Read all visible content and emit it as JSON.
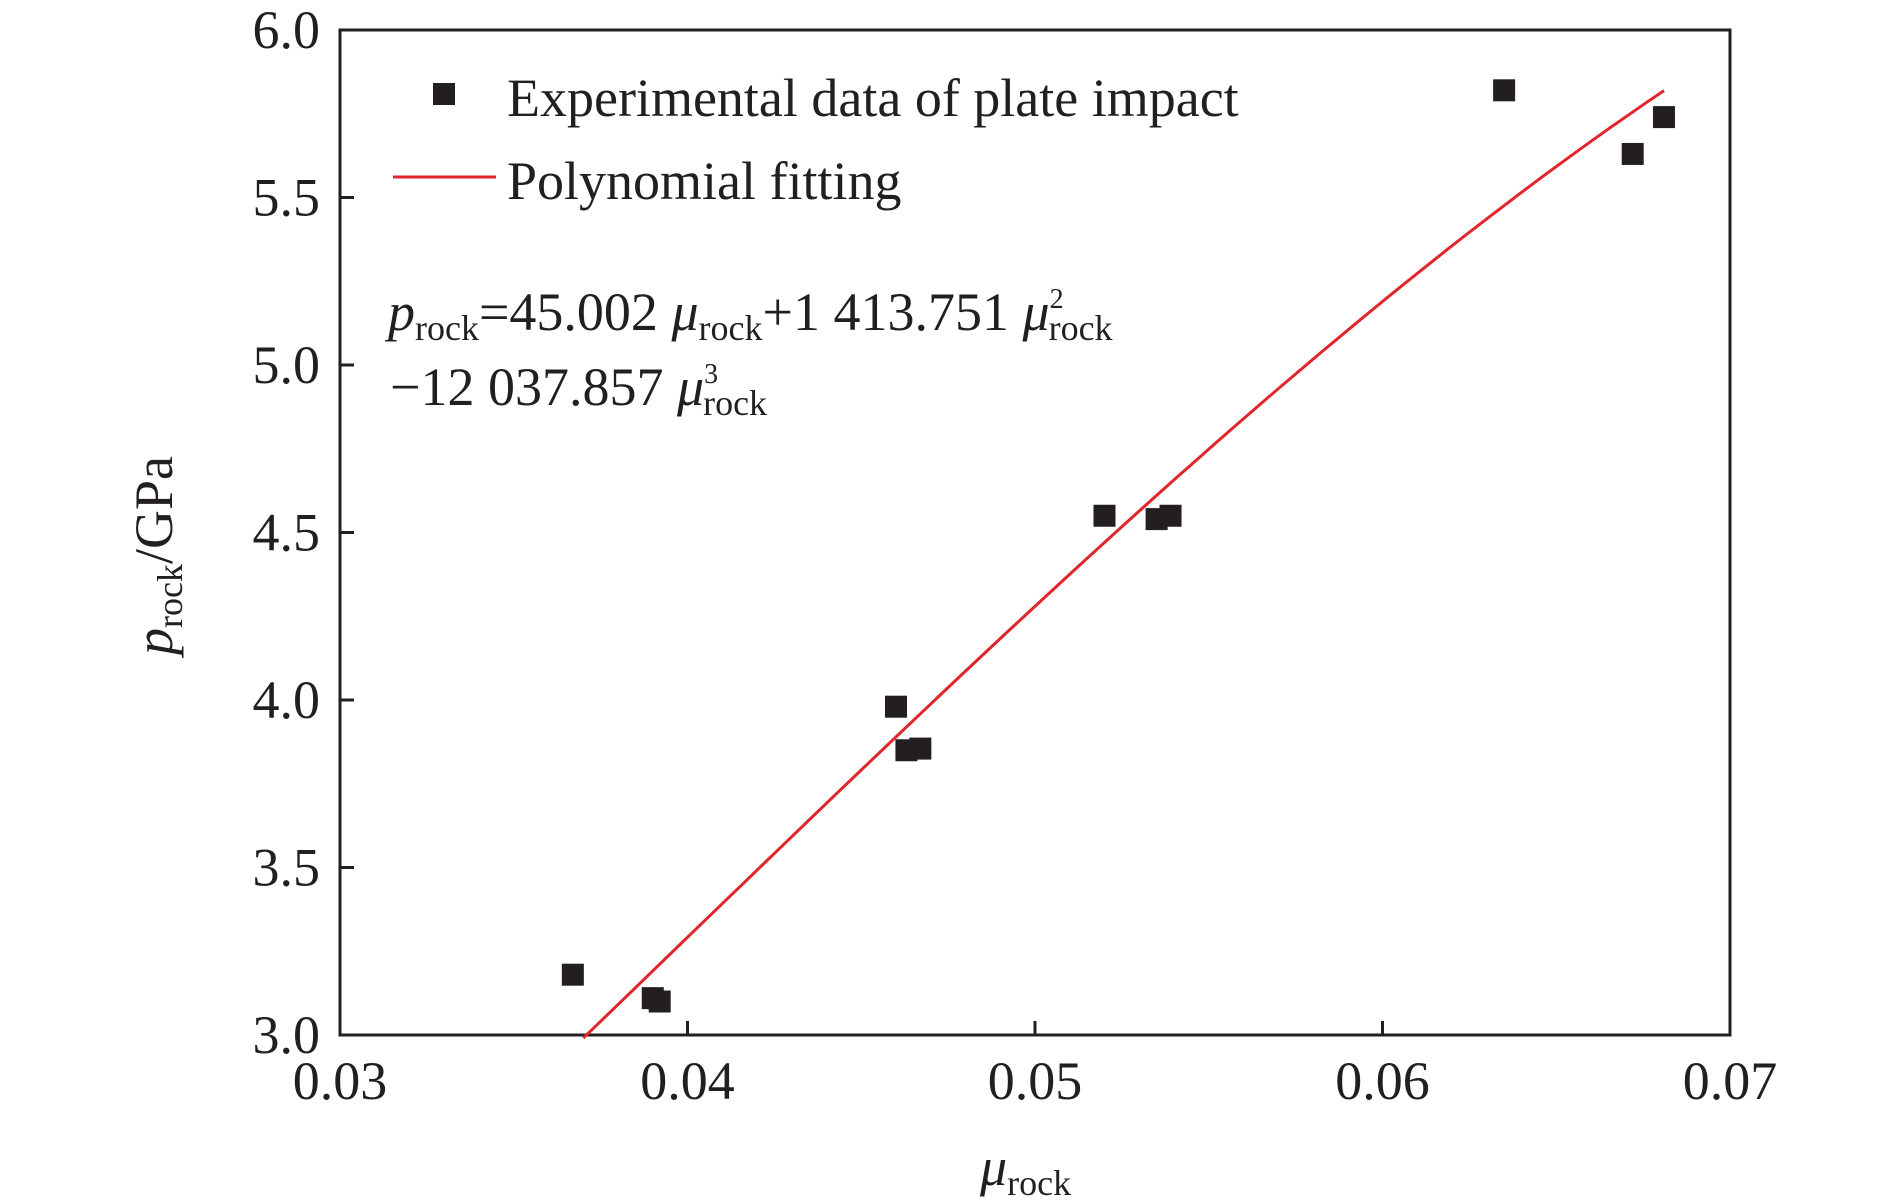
{
  "chart_data": {
    "type": "scatter",
    "xlabel": {
      "symbol": "μ",
      "sub": "rock"
    },
    "ylabel": {
      "symbol": "p",
      "sub": "rock",
      "unit": "/GPa"
    },
    "xlim": [
      0.03,
      0.07
    ],
    "ylim": [
      3.0,
      6.0
    ],
    "x_ticks": [
      0.03,
      0.04,
      0.05,
      0.06,
      0.07
    ],
    "x_tick_labels": [
      "0.03",
      "0.04",
      "0.05",
      "0.06",
      "0.07"
    ],
    "y_ticks": [
      3.0,
      3.5,
      4.0,
      4.5,
      5.0,
      5.5,
      6.0
    ],
    "y_tick_labels": [
      "3.0",
      "3.5",
      "4.0",
      "4.5",
      "5.0",
      "5.5",
      "6.0"
    ],
    "grid": false,
    "legend_position": "top-left",
    "series": [
      {
        "name": "Experimental data of plate impact",
        "kind": "scatter",
        "marker": "square",
        "color": "#231f20",
        "points": [
          {
            "x": 0.0367,
            "y": 3.18
          },
          {
            "x": 0.039,
            "y": 3.11
          },
          {
            "x": 0.0392,
            "y": 3.1
          },
          {
            "x": 0.046,
            "y": 3.98
          },
          {
            "x": 0.0463,
            "y": 3.85
          },
          {
            "x": 0.0467,
            "y": 3.855
          },
          {
            "x": 0.052,
            "y": 4.55
          },
          {
            "x": 0.0535,
            "y": 4.54
          },
          {
            "x": 0.0539,
            "y": 4.55
          },
          {
            "x": 0.0635,
            "y": 5.82
          },
          {
            "x": 0.0672,
            "y": 5.63
          },
          {
            "x": 0.0681,
            "y": 5.74
          }
        ]
      },
      {
        "name": "Polynomial fitting",
        "kind": "line",
        "color": "#e0262b",
        "coefficients": [
          45.002,
          1413.751,
          -12037.857
        ],
        "x_range": [
          0.037,
          0.0681
        ]
      }
    ],
    "equation": {
      "line1": {
        "lhs": "p",
        "lhs_sub": "rock",
        "eq": "=45.002 ",
        "mu1": "μ",
        "mu1_sub": "rock",
        "plus": "+1 413.751 ",
        "mu2": "μ",
        "mu2_sup": "2",
        "mu2_sub": "rock"
      },
      "line2": {
        "minus": "−12 037.857 ",
        "mu3": "μ",
        "mu3_sup": "3",
        "mu3_sub": "rock"
      }
    }
  }
}
